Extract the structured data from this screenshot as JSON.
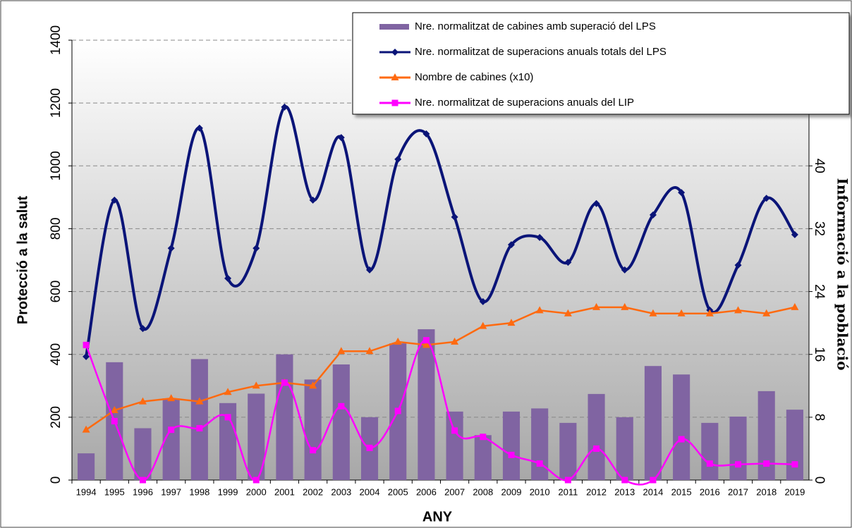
{
  "chart_data": {
    "type": "combo",
    "x_label": "ANY",
    "y_label": "Protecció  a la salut",
    "y2_label": "Informació a la població",
    "categories": [
      "1994",
      "1995",
      "1996",
      "1997",
      "1998",
      "1999",
      "2000",
      "2001",
      "2002",
      "2003",
      "2004",
      "2005",
      "2006",
      "2007",
      "2008",
      "2009",
      "2010",
      "2011",
      "2012",
      "2013",
      "2014",
      "2015",
      "2016",
      "2017",
      "2018",
      "2019"
    ],
    "ylim": [
      0,
      1400
    ],
    "yticks": [
      0,
      200,
      400,
      600,
      800,
      1000,
      1200,
      1400
    ],
    "y2lim": [
      0,
      56
    ],
    "y2ticks": [
      0,
      8,
      16,
      24,
      32,
      40
    ],
    "grid": true,
    "legend": "top-right",
    "series": [
      {
        "name": "Nre. normalitzat de cabines amb superació del LPS",
        "type": "bar",
        "color": "#8064a2",
        "values": [
          85,
          375,
          165,
          260,
          385,
          245,
          275,
          400,
          320,
          368,
          200,
          435,
          480,
          218,
          143,
          218,
          228,
          182,
          274,
          200,
          363,
          336,
          182,
          202,
          283,
          224
        ]
      },
      {
        "name": "Nre. normalitzat de superacions anuals totals del LPS",
        "type": "line",
        "smooth": true,
        "marker": "diamond",
        "color": "#0a1478",
        "values": [
          393,
          891,
          482,
          738,
          1120,
          642,
          738,
          1187,
          891,
          1090,
          669,
          1021,
          1102,
          837,
          568,
          749,
          772,
          693,
          880,
          669,
          844,
          915,
          541,
          684,
          897,
          781
        ]
      },
      {
        "name": "Nombre de cabines (x10)",
        "type": "line",
        "smooth": false,
        "marker": "triangle",
        "color": "#ff6a10",
        "values": [
          160,
          222,
          250,
          260,
          250,
          280,
          300,
          310,
          300,
          410,
          410,
          440,
          430,
          440,
          490,
          500,
          540,
          530,
          550,
          550,
          530,
          530,
          530,
          540,
          530,
          550
        ]
      },
      {
        "name": "Nre. normalitzat de superacions anuals del LIP",
        "type": "line",
        "smooth": true,
        "marker": "square",
        "axis": "y2",
        "color": "#ff00ff",
        "values": [
          17.2,
          7.5,
          0,
          6.4,
          6.6,
          8,
          0,
          12.4,
          3.8,
          9.4,
          4.1,
          8.8,
          17.8,
          6.3,
          5.5,
          3.2,
          2.1,
          0,
          4,
          0,
          0,
          5.2,
          2.1,
          2,
          2.1,
          2
        ]
      }
    ]
  }
}
